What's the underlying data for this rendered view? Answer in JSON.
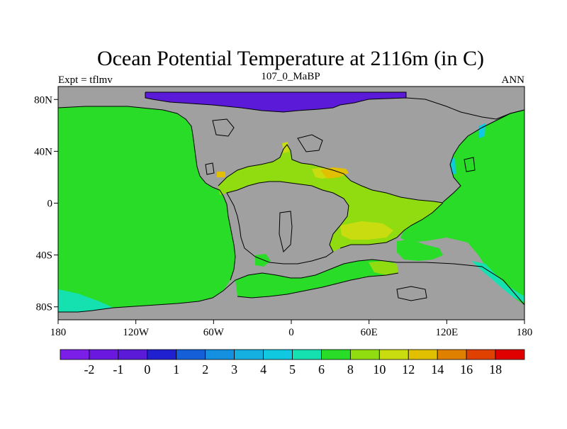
{
  "title": "Ocean Potential Temperature at 2116m (in C)",
  "left_label": "Expt = tflmv",
  "center_label": "107_0_MaBP",
  "right_label": "ANN",
  "x_ticks": [
    "180",
    "120W",
    "60W",
    "0",
    "60E",
    "120E",
    "180"
  ],
  "y_ticks": [
    "80N",
    "40N",
    "0",
    "40S",
    "80S"
  ],
  "colorbar": {
    "labels": [
      "-2",
      "-1",
      "0",
      "1",
      "2",
      "3",
      "4",
      "5",
      "6",
      "8",
      "10",
      "12",
      "14",
      "16",
      "18"
    ],
    "colors": [
      "#7a1ee8",
      "#6a18e0",
      "#5a1ad8",
      "#2020d0",
      "#1560d8",
      "#1590e0",
      "#15b0e0",
      "#10c8e0",
      "#15e0b0",
      "#28dc28",
      "#90dc10",
      "#c8dc10",
      "#e0c000",
      "#e08000",
      "#e04000",
      "#e00000"
    ]
  },
  "colors": {
    "land": "#a0a0a0",
    "ocean_main": "#28dc28",
    "ocean_warm": "#90dc10",
    "ocean_warmer": "#c8dc10",
    "ocean_hot": "#e0c000",
    "ocean_cold_arctic": "#5a1ad8",
    "ocean_cool_teal": "#15e0b0",
    "ocean_cool_cyan": "#10c8e0"
  }
}
